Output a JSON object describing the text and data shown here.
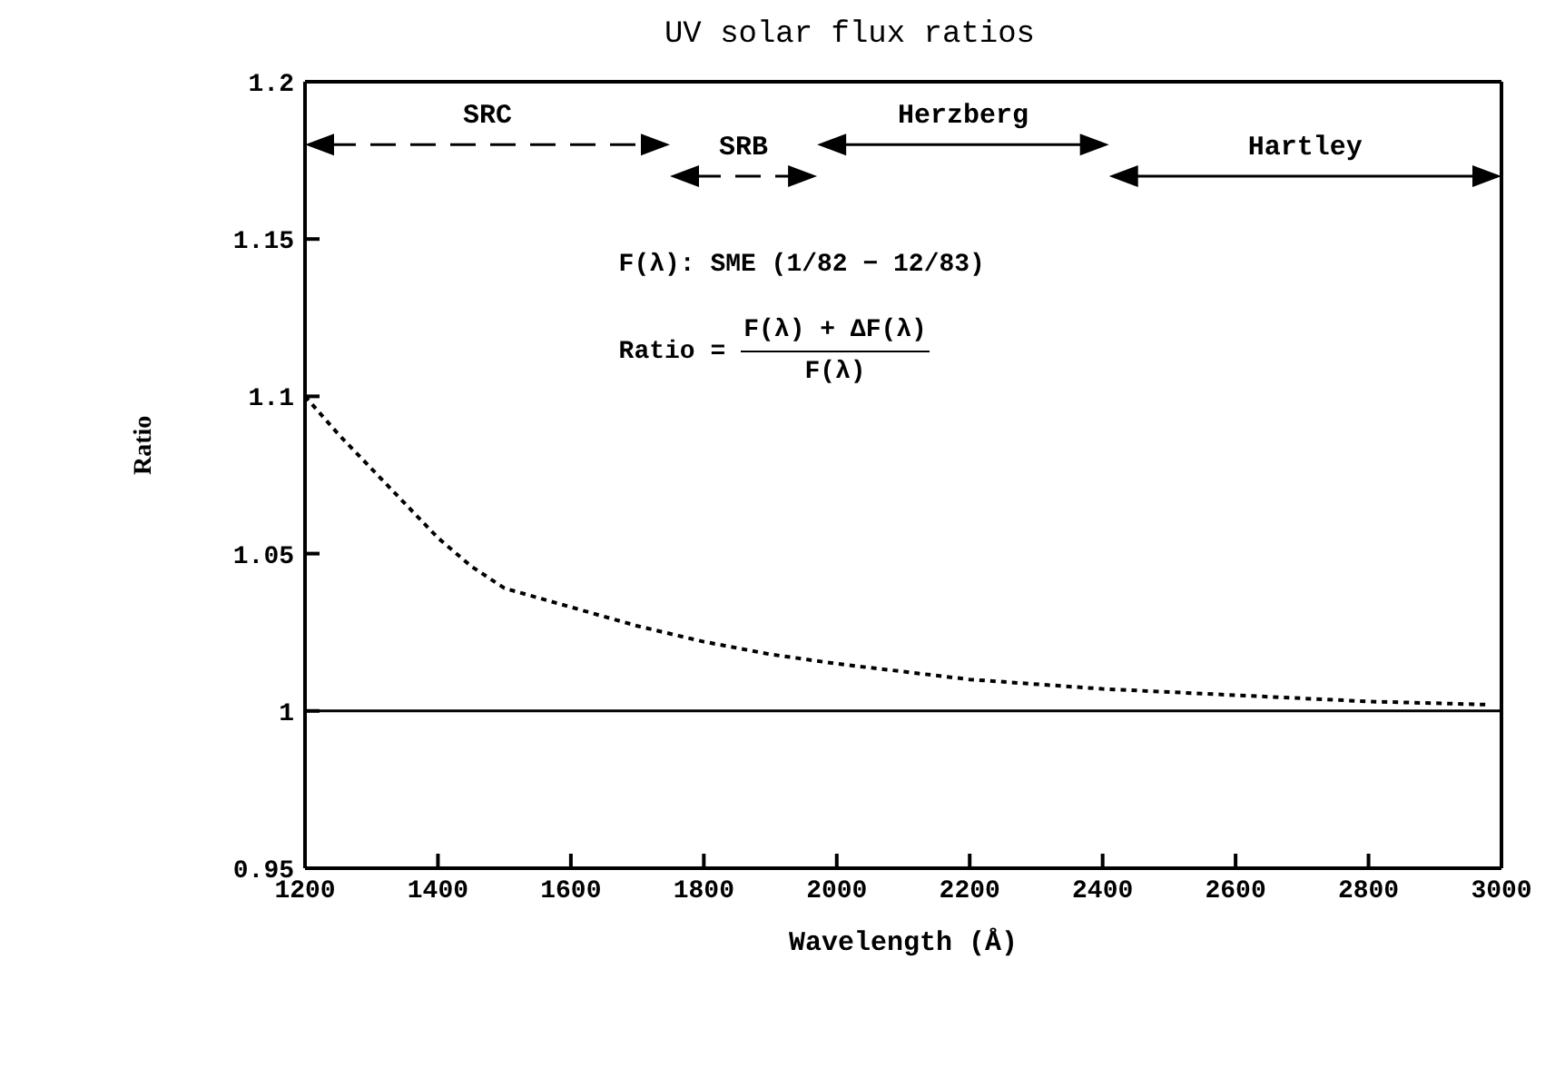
{
  "chart_data": {
    "type": "line",
    "title": "UV solar flux ratios",
    "xlabel": "Wavelength (Å)",
    "ylabel": "Ratio",
    "x": [
      1200,
      1250,
      1300,
      1350,
      1400,
      1450,
      1500,
      1600,
      1700,
      1800,
      1900,
      2000,
      2200,
      2400,
      2600,
      2800,
      2980
    ],
    "series": [
      {
        "color": "#000000",
        "line_style": "dotted",
        "values": [
          1.1,
          1.088,
          1.077,
          1.066,
          1.055,
          1.046,
          1.039,
          1.033,
          1.027,
          1.022,
          1.018,
          1.015,
          1.01,
          1.007,
          1.005,
          1.003,
          1.002
        ]
      }
    ],
    "xlim": [
      1200,
      3000
    ],
    "xticks": [
      1200,
      1400,
      1600,
      1800,
      2000,
      2200,
      2400,
      2600,
      2800,
      3000
    ],
    "ylim": [
      0.95,
      1.2
    ],
    "yticks": [
      0.95,
      1,
      1.05,
      1.1,
      1.15,
      1.2
    ],
    "ref_lines": [
      {
        "axis": "y",
        "value": 1,
        "color": "#000000",
        "line_style": "solid"
      }
    ],
    "annotations": [
      "SRC",
      "SRB",
      "Herzberg",
      "Hartley",
      "F(λ): SME (1/82 − 12/83)",
      "Ratio =",
      "F(λ) + ΔF(λ)",
      "F(λ)"
    ],
    "grid": false,
    "legend": false,
    "marker": "none"
  }
}
